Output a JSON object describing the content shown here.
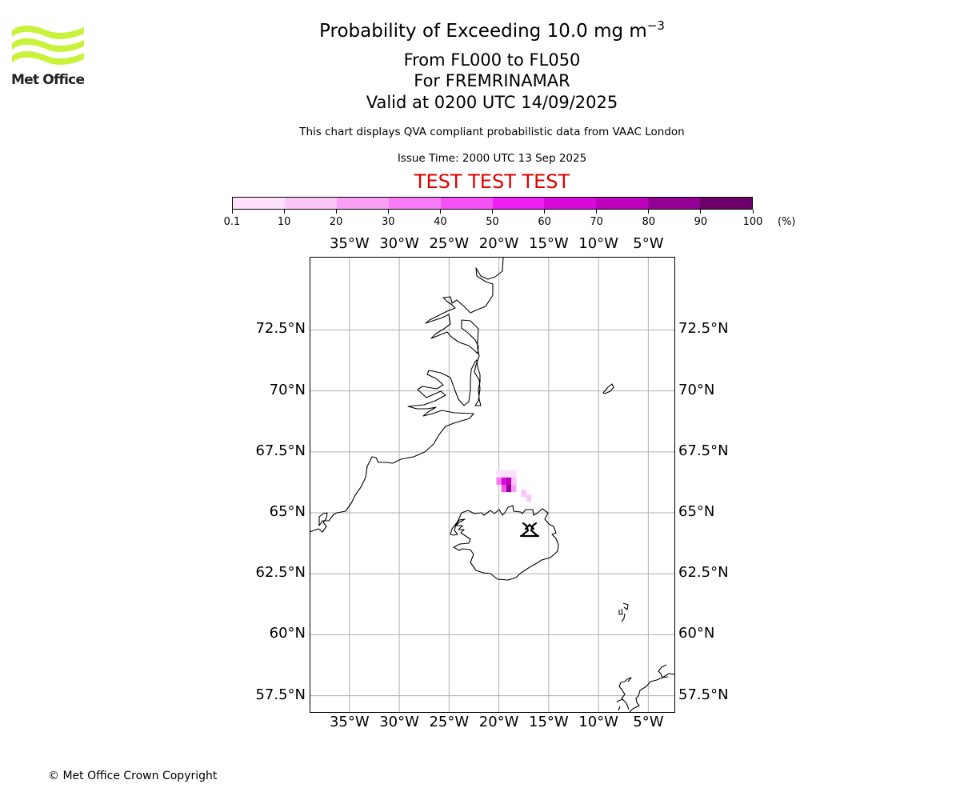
{
  "logo": {
    "text": "Met Office",
    "brand_color": "#c8f23c"
  },
  "header": {
    "title_prefix": "Probability of Exceeding 10.0 mg m",
    "title_exponent": "−3",
    "levels": "From FL000 to FL050",
    "volcano_line": "For FREMRINAMAR",
    "valid_time": "Valid at 0200 UTC 14/09/2025",
    "description": "This chart displays QVA compliant probabilistic data from VAAC London",
    "issue_time": "Issue Time: 2000 UTC 13 Sep 2025",
    "test_banner": "TEST TEST TEST",
    "test_color": "#e00000"
  },
  "colorbar": {
    "ticks": [
      "0.1",
      "10",
      "20",
      "30",
      "40",
      "50",
      "60",
      "70",
      "80",
      "90",
      "100"
    ],
    "unit": "(%)",
    "colors": [
      "#fde0fb",
      "#fbc6f8",
      "#f9a0f6",
      "#f77bf5",
      "#f552f6",
      "#f020f4",
      "#d80ad8",
      "#bc00bc",
      "#940094",
      "#6a0068"
    ]
  },
  "map": {
    "projection": "lat-lon",
    "lon_range": [
      -39.0,
      -2.3
    ],
    "lat_range": [
      56.8,
      75.5
    ],
    "lon_ticks_deg": [
      -35,
      -30,
      -25,
      -20,
      -15,
      -10,
      -5
    ],
    "lon_tick_labels": [
      "35°W",
      "30°W",
      "25°W",
      "20°W",
      "15°W",
      "10°W",
      "5°W"
    ],
    "lat_ticks_deg": [
      72.5,
      70,
      67.5,
      65,
      62.5,
      60,
      57.5
    ],
    "lat_tick_labels": [
      "72.5°N",
      "70°N",
      "67.5°N",
      "65°N",
      "62.5°N",
      "60°N",
      "57.5°N"
    ],
    "grid": true,
    "volcano_marker_icon": "volcano-icon",
    "probability_cells": [
      {
        "lon": -20.0,
        "lat": 66.6,
        "prob": 5
      },
      {
        "lon": -19.5,
        "lat": 66.6,
        "prob": 8
      },
      {
        "lon": -19.0,
        "lat": 66.6,
        "prob": 5
      },
      {
        "lon": -18.5,
        "lat": 66.6,
        "prob": 2
      },
      {
        "lon": -20.0,
        "lat": 66.3,
        "prob": 30
      },
      {
        "lon": -19.5,
        "lat": 66.3,
        "prob": 65
      },
      {
        "lon": -19.0,
        "lat": 66.3,
        "prob": 70
      },
      {
        "lon": -18.5,
        "lat": 66.3,
        "prob": 12
      },
      {
        "lon": -19.5,
        "lat": 66.0,
        "prob": 45
      },
      {
        "lon": -19.0,
        "lat": 66.0,
        "prob": 82
      },
      {
        "lon": -18.5,
        "lat": 66.0,
        "prob": 20
      },
      {
        "lon": -17.5,
        "lat": 65.8,
        "prob": 10
      },
      {
        "lon": -17.0,
        "lat": 65.6,
        "prob": 15
      }
    ]
  },
  "footer": {
    "copyright": "© Met Office Crown Copyright"
  }
}
